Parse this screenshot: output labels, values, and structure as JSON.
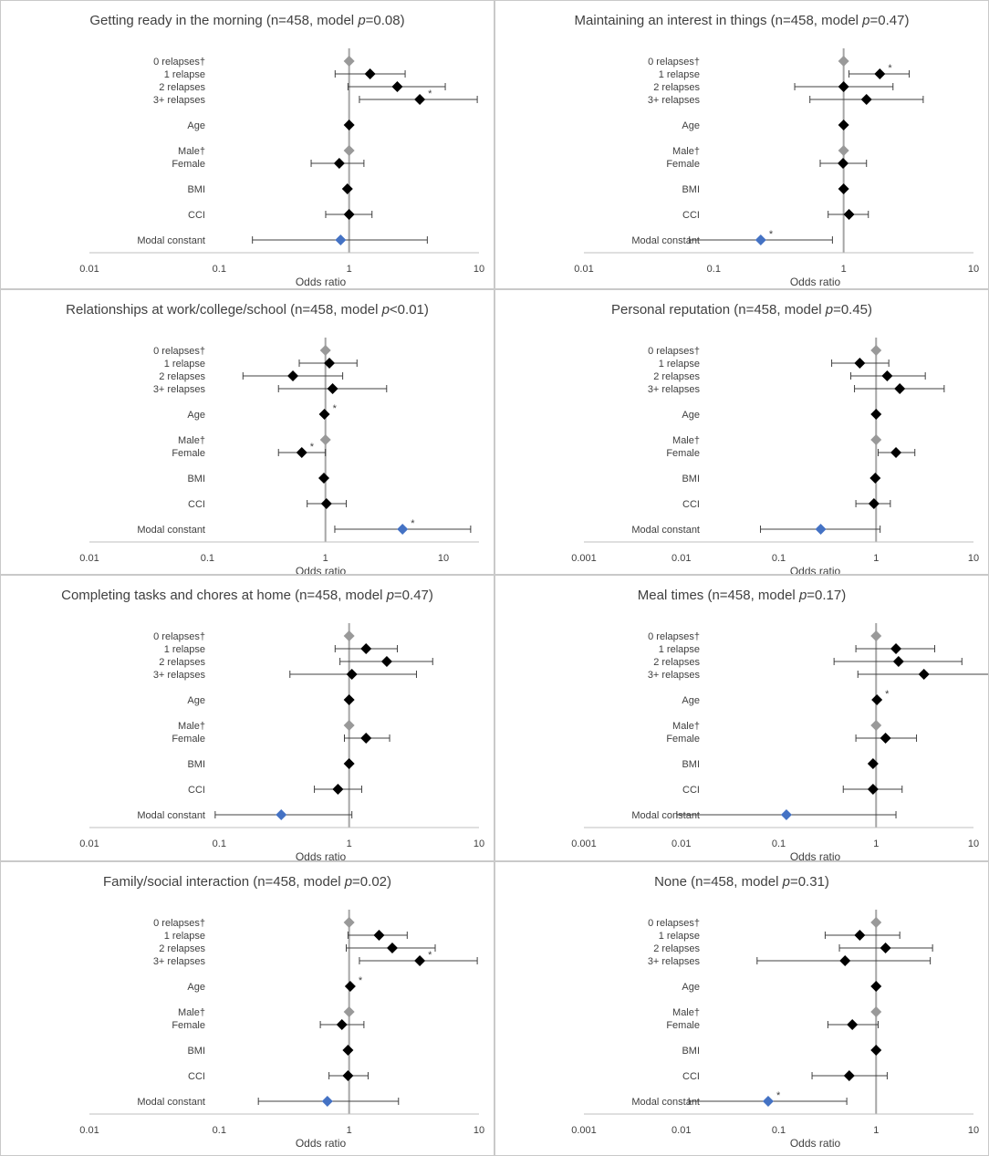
{
  "figure": {
    "x_axis_label": "Odds ratio",
    "colors": {
      "point": "#000000",
      "reference": "#999999",
      "constant": "#4472c4",
      "whisker": "#404040",
      "refline": "#a6a6a6",
      "axis": "#bfbfbf",
      "text": "#404040"
    }
  },
  "chart_data": [
    {
      "type": "forest",
      "id": "p1",
      "title_prefix": "Getting ready in the morning (n=458, model ",
      "title_p": "p",
      "title_suffix": "=0.08)",
      "xlabel": "Odds ratio",
      "xscale": "log",
      "xlim": [
        0.01,
        10
      ],
      "ticks": [
        {
          "value": 0.01,
          "label": "0.01"
        },
        {
          "value": 0.1,
          "label": "0.1"
        },
        {
          "value": 1,
          "label": "1"
        },
        {
          "value": 10,
          "label": "10"
        }
      ],
      "rows": [
        {
          "label": "0 relapses†",
          "or": 1.0,
          "lo": null,
          "hi": null,
          "kind": "reference",
          "sig": false
        },
        {
          "label": "1 relapse",
          "or": 1.45,
          "lo": 0.78,
          "hi": 2.7,
          "kind": "estimate",
          "sig": false
        },
        {
          "label": "2 relapses",
          "or": 2.35,
          "lo": 0.98,
          "hi": 5.5,
          "kind": "estimate",
          "sig": false
        },
        {
          "label": "3+ relapses",
          "or": 3.5,
          "lo": 1.2,
          "hi": 9.7,
          "kind": "estimate",
          "sig": true
        },
        {
          "label": "Age",
          "or": 1.0,
          "lo": null,
          "hi": null,
          "kind": "estimate",
          "sig": false
        },
        {
          "label": "Male†",
          "or": 1.0,
          "lo": null,
          "hi": null,
          "kind": "reference",
          "sig": false
        },
        {
          "label": "Female",
          "or": 0.84,
          "lo": 0.51,
          "hi": 1.3,
          "kind": "estimate",
          "sig": false
        },
        {
          "label": "BMI",
          "or": 0.97,
          "lo": null,
          "hi": null,
          "kind": "estimate",
          "sig": false
        },
        {
          "label": "CCI",
          "or": 1.0,
          "lo": 0.66,
          "hi": 1.5,
          "kind": "estimate",
          "sig": false
        },
        {
          "label": "Modal constant",
          "or": 0.86,
          "lo": 0.18,
          "hi": 4.0,
          "kind": "constant",
          "sig": false
        }
      ]
    },
    {
      "type": "forest",
      "id": "p2",
      "title_prefix": "Maintaining an interest in things (n=458, model ",
      "title_p": "p",
      "title_suffix": "=0.47)",
      "xlabel": "Odds ratio",
      "xscale": "log",
      "xlim": [
        0.01,
        10
      ],
      "ticks": [
        {
          "value": 0.01,
          "label": "0.01"
        },
        {
          "value": 0.1,
          "label": "0.1"
        },
        {
          "value": 1,
          "label": "1"
        },
        {
          "value": 10,
          "label": "10"
        }
      ],
      "rows": [
        {
          "label": "0 relapses†",
          "or": 1.0,
          "lo": null,
          "hi": null,
          "kind": "reference",
          "sig": false
        },
        {
          "label": "1 relapse",
          "or": 1.9,
          "lo": 1.1,
          "hi": 3.2,
          "kind": "estimate",
          "sig": true
        },
        {
          "label": "2 relapses",
          "or": 1.0,
          "lo": 0.42,
          "hi": 2.4,
          "kind": "estimate",
          "sig": false
        },
        {
          "label": "3+ relapses",
          "or": 1.5,
          "lo": 0.55,
          "hi": 4.1,
          "kind": "estimate",
          "sig": false
        },
        {
          "label": "Age",
          "or": 1.0,
          "lo": null,
          "hi": null,
          "kind": "estimate",
          "sig": false
        },
        {
          "label": "Male†",
          "or": 1.0,
          "lo": null,
          "hi": null,
          "kind": "reference",
          "sig": false
        },
        {
          "label": "Female",
          "or": 0.99,
          "lo": 0.66,
          "hi": 1.5,
          "kind": "estimate",
          "sig": false
        },
        {
          "label": "BMI",
          "or": 1.0,
          "lo": null,
          "hi": null,
          "kind": "estimate",
          "sig": false
        },
        {
          "label": "CCI",
          "or": 1.1,
          "lo": 0.76,
          "hi": 1.55,
          "kind": "estimate",
          "sig": false
        },
        {
          "label": "Modal constant",
          "or": 0.23,
          "lo": 0.065,
          "hi": 0.82,
          "kind": "constant",
          "sig": true
        }
      ]
    },
    {
      "type": "forest",
      "id": "p3",
      "title_prefix": "Relationships at work/college/school (n=458, model ",
      "title_p": "p",
      "title_suffix": "<0.01)",
      "xlabel": "Odds ratio",
      "xscale": "log",
      "xlim": [
        0.01,
        20
      ],
      "ticks": [
        {
          "value": 0.01,
          "label": "0.01"
        },
        {
          "value": 0.1,
          "label": "0.1"
        },
        {
          "value": 1,
          "label": "1"
        },
        {
          "value": 10,
          "label": "10"
        }
      ],
      "rows": [
        {
          "label": "0 relapses†",
          "or": 1.0,
          "lo": null,
          "hi": null,
          "kind": "reference",
          "sig": false
        },
        {
          "label": "1 relapse",
          "or": 1.08,
          "lo": 0.6,
          "hi": 1.85,
          "kind": "estimate",
          "sig": false
        },
        {
          "label": "2 relapses",
          "or": 0.53,
          "lo": 0.2,
          "hi": 1.4,
          "kind": "estimate",
          "sig": false
        },
        {
          "label": "3+ relapses",
          "or": 1.15,
          "lo": 0.4,
          "hi": 3.3,
          "kind": "estimate",
          "sig": false
        },
        {
          "label": "Age",
          "or": 0.98,
          "lo": null,
          "hi": null,
          "kind": "estimate",
          "sig": true
        },
        {
          "label": "Male†",
          "or": 1.0,
          "lo": null,
          "hi": null,
          "kind": "reference",
          "sig": false
        },
        {
          "label": "Female",
          "or": 0.63,
          "lo": 0.4,
          "hi": 1.0,
          "kind": "estimate",
          "sig": true
        },
        {
          "label": "BMI",
          "or": 0.97,
          "lo": null,
          "hi": null,
          "kind": "estimate",
          "sig": false
        },
        {
          "label": "CCI",
          "or": 1.02,
          "lo": 0.7,
          "hi": 1.5,
          "kind": "estimate",
          "sig": false
        },
        {
          "label": "Modal constant",
          "or": 4.5,
          "lo": 1.2,
          "hi": 17.0,
          "kind": "constant",
          "sig": true
        }
      ]
    },
    {
      "type": "forest",
      "id": "p4",
      "title_prefix": "Personal reputation (n=458, model ",
      "title_p": "p",
      "title_suffix": "=0.45)",
      "xlabel": "Odds ratio",
      "xscale": "log",
      "xlim": [
        0.001,
        10
      ],
      "ticks": [
        {
          "value": 0.001,
          "label": "0.001"
        },
        {
          "value": 0.01,
          "label": "0.01"
        },
        {
          "value": 0.1,
          "label": "0.1"
        },
        {
          "value": 1,
          "label": "1"
        },
        {
          "value": 10,
          "label": "10"
        }
      ],
      "rows": [
        {
          "label": "0 relapses†",
          "or": 1.0,
          "lo": null,
          "hi": null,
          "kind": "reference",
          "sig": false
        },
        {
          "label": "1 relapse",
          "or": 0.68,
          "lo": 0.35,
          "hi": 1.35,
          "kind": "estimate",
          "sig": false
        },
        {
          "label": "2 relapses",
          "or": 1.3,
          "lo": 0.55,
          "hi": 3.2,
          "kind": "estimate",
          "sig": false
        },
        {
          "label": "3+ relapses",
          "or": 1.75,
          "lo": 0.6,
          "hi": 5.0,
          "kind": "estimate",
          "sig": false
        },
        {
          "label": "Age",
          "or": 1.0,
          "lo": null,
          "hi": null,
          "kind": "estimate",
          "sig": false
        },
        {
          "label": "Male†",
          "or": 1.0,
          "lo": null,
          "hi": null,
          "kind": "reference",
          "sig": false
        },
        {
          "label": "Female",
          "or": 1.6,
          "lo": 1.05,
          "hi": 2.5,
          "kind": "estimate",
          "sig": false
        },
        {
          "label": "BMI",
          "or": 0.98,
          "lo": null,
          "hi": null,
          "kind": "estimate",
          "sig": false
        },
        {
          "label": "CCI",
          "or": 0.95,
          "lo": 0.62,
          "hi": 1.4,
          "kind": "estimate",
          "sig": false
        },
        {
          "label": "Modal constant",
          "or": 0.27,
          "lo": 0.065,
          "hi": 1.1,
          "kind": "constant",
          "sig": false
        }
      ]
    },
    {
      "type": "forest",
      "id": "p5",
      "title_prefix": "Completing tasks and chores at home (n=458, model ",
      "title_p": "p",
      "title_suffix": "=0.47)",
      "xlabel": "Odds ratio",
      "xscale": "log",
      "xlim": [
        0.01,
        10
      ],
      "ticks": [
        {
          "value": 0.01,
          "label": "0.01"
        },
        {
          "value": 0.1,
          "label": "0.1"
        },
        {
          "value": 1,
          "label": "1"
        },
        {
          "value": 10,
          "label": "10"
        }
      ],
      "rows": [
        {
          "label": "0 relapses†",
          "or": 1.0,
          "lo": null,
          "hi": null,
          "kind": "reference",
          "sig": false
        },
        {
          "label": "1 relapse",
          "or": 1.35,
          "lo": 0.78,
          "hi": 2.35,
          "kind": "estimate",
          "sig": false
        },
        {
          "label": "2 relapses",
          "or": 1.95,
          "lo": 0.85,
          "hi": 4.4,
          "kind": "estimate",
          "sig": false
        },
        {
          "label": "3+ relapses",
          "or": 1.05,
          "lo": 0.35,
          "hi": 3.3,
          "kind": "estimate",
          "sig": false
        },
        {
          "label": "Age",
          "or": 1.0,
          "lo": null,
          "hi": null,
          "kind": "estimate",
          "sig": false
        },
        {
          "label": "Male†",
          "or": 1.0,
          "lo": null,
          "hi": null,
          "kind": "reference",
          "sig": false
        },
        {
          "label": "Female",
          "or": 1.35,
          "lo": 0.92,
          "hi": 2.05,
          "kind": "estimate",
          "sig": false
        },
        {
          "label": "BMI",
          "or": 1.0,
          "lo": null,
          "hi": null,
          "kind": "estimate",
          "sig": false
        },
        {
          "label": "CCI",
          "or": 0.82,
          "lo": 0.54,
          "hi": 1.25,
          "kind": "estimate",
          "sig": false
        },
        {
          "label": "Modal constant",
          "or": 0.3,
          "lo": 0.093,
          "hi": 1.05,
          "kind": "constant",
          "sig": false
        }
      ]
    },
    {
      "type": "forest",
      "id": "p6",
      "title_prefix": "Meal times (n=458, model ",
      "title_p": "p",
      "title_suffix": "=0.17)",
      "xlabel": "Odds ratio",
      "xscale": "log",
      "xlim": [
        0.001,
        10
      ],
      "ticks": [
        {
          "value": 0.001,
          "label": "0.001"
        },
        {
          "value": 0.01,
          "label": "0.01"
        },
        {
          "value": 0.1,
          "label": "0.1"
        },
        {
          "value": 1,
          "label": "1"
        },
        {
          "value": 10,
          "label": "10"
        }
      ],
      "rows": [
        {
          "label": "0 relapses†",
          "or": 1.0,
          "lo": null,
          "hi": null,
          "kind": "reference",
          "sig": false
        },
        {
          "label": "1 relapse",
          "or": 1.6,
          "lo": 0.62,
          "hi": 4.0,
          "kind": "estimate",
          "sig": false
        },
        {
          "label": "2 relapses",
          "or": 1.7,
          "lo": 0.37,
          "hi": 7.6,
          "kind": "estimate",
          "sig": false
        },
        {
          "label": "3+ relapses",
          "or": 3.1,
          "lo": 0.65,
          "hi": 14.5,
          "kind": "estimate",
          "sig": false
        },
        {
          "label": "Age",
          "or": 1.02,
          "lo": null,
          "hi": null,
          "kind": "estimate",
          "sig": true
        },
        {
          "label": "Male†",
          "or": 1.0,
          "lo": null,
          "hi": null,
          "kind": "reference",
          "sig": false
        },
        {
          "label": "Female",
          "or": 1.25,
          "lo": 0.62,
          "hi": 2.6,
          "kind": "estimate",
          "sig": false
        },
        {
          "label": "BMI",
          "or": 0.93,
          "lo": null,
          "hi": null,
          "kind": "estimate",
          "sig": false
        },
        {
          "label": "CCI",
          "or": 0.93,
          "lo": 0.46,
          "hi": 1.85,
          "kind": "estimate",
          "sig": false
        },
        {
          "label": "Modal constant",
          "or": 0.12,
          "lo": 0.009,
          "hi": 1.6,
          "kind": "constant",
          "sig": false
        }
      ]
    },
    {
      "type": "forest",
      "id": "p7",
      "title_prefix": "Family/social interaction (n=458, model ",
      "title_p": "p",
      "title_suffix": "=0.02)",
      "xlabel": "Odds ratio",
      "xscale": "log",
      "xlim": [
        0.01,
        10
      ],
      "ticks": [
        {
          "value": 0.01,
          "label": "0.01"
        },
        {
          "value": 0.1,
          "label": "0.1"
        },
        {
          "value": 1,
          "label": "1"
        },
        {
          "value": 10,
          "label": "10"
        }
      ],
      "rows": [
        {
          "label": "0 relapses†",
          "or": 1.0,
          "lo": null,
          "hi": null,
          "kind": "reference",
          "sig": false
        },
        {
          "label": "1 relapse",
          "or": 1.7,
          "lo": 0.98,
          "hi": 2.8,
          "kind": "estimate",
          "sig": false
        },
        {
          "label": "2 relapses",
          "or": 2.15,
          "lo": 0.95,
          "hi": 4.6,
          "kind": "estimate",
          "sig": false
        },
        {
          "label": "3+ relapses",
          "or": 3.5,
          "lo": 1.2,
          "hi": 9.7,
          "kind": "estimate",
          "sig": true
        },
        {
          "label": "Age",
          "or": 1.02,
          "lo": null,
          "hi": null,
          "kind": "estimate",
          "sig": true
        },
        {
          "label": "Male†",
          "or": 1.0,
          "lo": null,
          "hi": null,
          "kind": "reference",
          "sig": false
        },
        {
          "label": "Female",
          "or": 0.88,
          "lo": 0.6,
          "hi": 1.3,
          "kind": "estimate",
          "sig": false
        },
        {
          "label": "BMI",
          "or": 0.98,
          "lo": null,
          "hi": null,
          "kind": "estimate",
          "sig": false
        },
        {
          "label": "CCI",
          "or": 0.98,
          "lo": 0.7,
          "hi": 1.4,
          "kind": "estimate",
          "sig": false
        },
        {
          "label": "Modal constant",
          "or": 0.68,
          "lo": 0.2,
          "hi": 2.4,
          "kind": "constant",
          "sig": false
        }
      ]
    },
    {
      "type": "forest",
      "id": "p8",
      "title_prefix": "None (n=458, model ",
      "title_p": "p",
      "title_suffix": "=0.31)",
      "xlabel": "Odds ratio",
      "xscale": "log",
      "xlim": [
        0.001,
        10
      ],
      "ticks": [
        {
          "value": 0.001,
          "label": "0.001"
        },
        {
          "value": 0.01,
          "label": "0.01"
        },
        {
          "value": 0.1,
          "label": "0.1"
        },
        {
          "value": 1,
          "label": "1"
        },
        {
          "value": 10,
          "label": "10"
        }
      ],
      "rows": [
        {
          "label": "0 relapses†",
          "or": 1.0,
          "lo": null,
          "hi": null,
          "kind": "reference",
          "sig": false
        },
        {
          "label": "1 relapse",
          "or": 0.68,
          "lo": 0.3,
          "hi": 1.75,
          "kind": "estimate",
          "sig": false
        },
        {
          "label": "2 relapses",
          "or": 1.25,
          "lo": 0.42,
          "hi": 3.8,
          "kind": "estimate",
          "sig": false
        },
        {
          "label": "3+ relapses",
          "or": 0.48,
          "lo": 0.06,
          "hi": 3.6,
          "kind": "estimate",
          "sig": false
        },
        {
          "label": "Age",
          "or": 1.0,
          "lo": null,
          "hi": null,
          "kind": "estimate",
          "sig": false
        },
        {
          "label": "Male†",
          "or": 1.0,
          "lo": null,
          "hi": null,
          "kind": "reference",
          "sig": false
        },
        {
          "label": "Female",
          "or": 0.57,
          "lo": 0.32,
          "hi": 1.05,
          "kind": "estimate",
          "sig": false
        },
        {
          "label": "BMI",
          "or": 1.0,
          "lo": null,
          "hi": null,
          "kind": "estimate",
          "sig": false
        },
        {
          "label": "CCI",
          "or": 0.53,
          "lo": 0.22,
          "hi": 1.3,
          "kind": "estimate",
          "sig": false
        },
        {
          "label": "Modal constant",
          "or": 0.078,
          "lo": 0.012,
          "hi": 0.5,
          "kind": "constant",
          "sig": true
        }
      ]
    }
  ]
}
